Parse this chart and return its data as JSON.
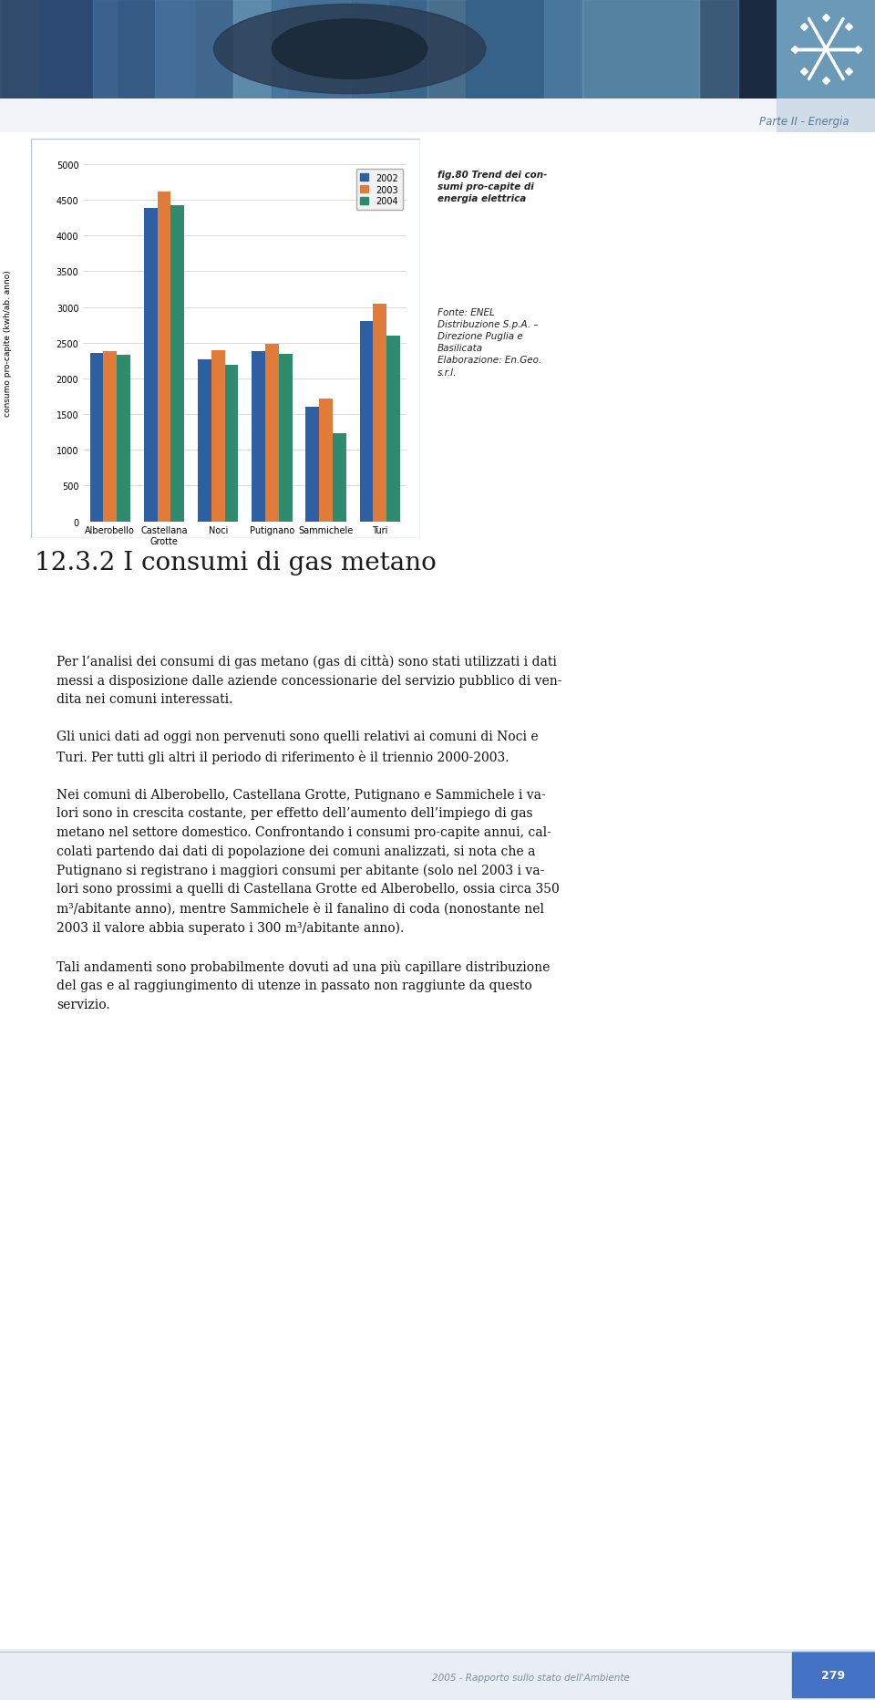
{
  "categories": [
    "Alberobello",
    "Castellana\nGrotte",
    "Noci",
    "Putignano",
    "Sammichele",
    "Turi"
  ],
  "series": {
    "2002": [
      2350,
      4380,
      2270,
      2380,
      1600,
      2800
    ],
    "2003": [
      2380,
      4620,
      2390,
      2490,
      1720,
      3050
    ],
    "2004": [
      2330,
      4430,
      2190,
      2340,
      1230,
      2600
    ]
  },
  "colors": {
    "2002": "#2E5FA3",
    "2003": "#E07B39",
    "2004": "#2E8B6E"
  },
  "ylim": [
    0,
    5000
  ],
  "yticks": [
    0,
    500,
    1000,
    1500,
    2000,
    2500,
    3000,
    3500,
    4000,
    4500,
    5000
  ],
  "ylabel": "consumo pro-capite (kwh/ab. anno)",
  "legend_labels": [
    "2002",
    "2003",
    "2004"
  ],
  "bar_width": 0.25,
  "fig_caption_bold": "fig.80 Trend dei con-\nsumi pro-capite di\nenergia elettrica",
  "fig_caption_normal": "Fonte: ENEL\nDistribuzione S.p.A. –\nDirezione Puglia e\nBasilicata\nElaborazione: En.Geo.\ns.r.l.",
  "section_title": "12.3.2 I consumi di gas metano",
  "para1": "Per l’analisi dei consumi di gas metano (gas di città) sono stati utilizzati i dati\nmessi a disposizione dalle aziende concessionarie del servizio pubblico di ven-\ndita nei comuni interessati.",
  "para2": "Gli unici dati ad oggi non pervenuti sono quelli relativi ai comuni di Noci e\nTuri. Per tutti gli altri il periodo di riferimento è il triennio 2000-2003.",
  "para3": "Nei comuni di Alberobello, Castellana Grotte, Putignano e Sammichele i va-\nlori sono in crescita costante, per effetto dell’aumento dell’impiego di gas\nmetano nel settore domestico. Confrontando i consumi pro-capite annui, cal-\ncolati partendo dai dati di popolazione dei comuni analizzati, si nota che a\nPutignano si registrano i maggiori consumi per abitante (solo nel 2003 i va-\nlori sono prossimi a quelli di Castellana Grotte ed Alberobello, ossia circa 350\nm³/abitante anno), mentre Sammichele è il fanalino di coda (nonostante nel\n2003 il valore abbia superato i 300 m³/abitante anno).",
  "para4": "Tali andamenti sono probabilmente dovuti ad una più capillare distribuzione\ndel gas e al raggiungimento di utenze in passato non raggiunte da questo\nservizio.",
  "header_text": "Parte II - Energia",
  "footer_text": "2005 - Rapporto sullo stato dell'Ambiente",
  "footer_page": "279",
  "header_bg": "#5b8fa8",
  "header_img_colors": [
    "#3a6080",
    "#4a7898",
    "#5a8fb0",
    "#8ab0c8"
  ],
  "snowflake_color": "#5b8fa8",
  "chart_border_color": "#B0C8D8",
  "footer_bg": "#E0E8F0",
  "footer_bar_color": "#4472C4"
}
